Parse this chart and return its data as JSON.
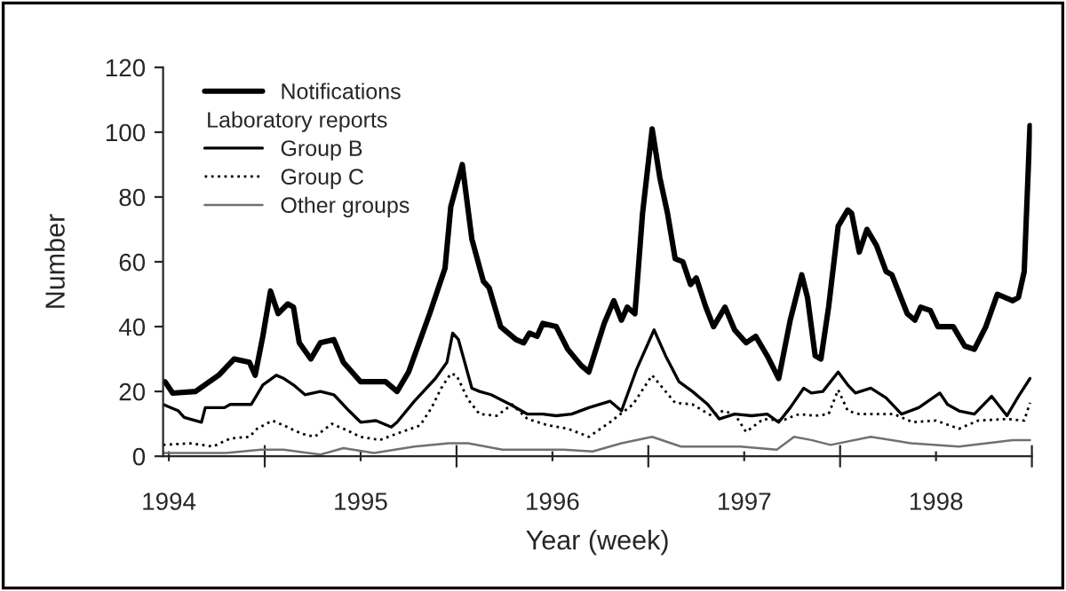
{
  "chart_data": {
    "type": "line",
    "xlabel": "Year (week)",
    "ylabel": "Number",
    "legend_title": "Laboratory reports",
    "legend": "top left",
    "grid": false,
    "xlim": [
      1994.47,
      1999.0
    ],
    "ylim": [
      0,
      120
    ],
    "yticks": [
      0,
      20,
      40,
      60,
      80,
      100,
      120
    ],
    "xticks": [
      {
        "value": 1995,
        "label": null
      },
      {
        "value": 1996,
        "label": null
      },
      {
        "value": 1997,
        "label": null
      },
      {
        "value": 1998,
        "label": null
      },
      {
        "value": 1999,
        "label": null
      },
      {
        "value": 1994.5,
        "label": "1994"
      },
      {
        "value": 1995.5,
        "label": "1995"
      },
      {
        "value": 1996.5,
        "label": "1996"
      },
      {
        "value": 1997.5,
        "label": "1997"
      },
      {
        "value": 1998.5,
        "label": "1998"
      }
    ],
    "series": [
      {
        "name": "Notifications",
        "color": "#000000",
        "line_style": "solid",
        "x": [
          1994.48,
          1994.52,
          1994.64,
          1994.76,
          1994.84,
          1994.92,
          1994.95,
          1994.99,
          1995.03,
          1995.07,
          1995.12,
          1995.15,
          1995.18,
          1995.24,
          1995.29,
          1995.36,
          1995.41,
          1995.5,
          1995.63,
          1995.69,
          1995.75,
          1995.86,
          1995.94,
          1995.97,
          1996.03,
          1996.08,
          1996.14,
          1996.17,
          1996.23,
          1996.31,
          1996.35,
          1996.38,
          1996.42,
          1996.45,
          1996.52,
          1996.58,
          1996.65,
          1996.69,
          1996.77,
          1996.82,
          1996.86,
          1996.89,
          1996.93,
          1996.97,
          1997.02,
          1997.06,
          1997.1,
          1997.14,
          1997.18,
          1997.22,
          1997.25,
          1997.3,
          1997.34,
          1997.4,
          1997.45,
          1997.51,
          1997.56,
          1997.62,
          1997.68,
          1997.74,
          1997.8,
          1997.83,
          1997.87,
          1997.9,
          1997.94,
          1997.99,
          1998.04,
          1998.06,
          1998.1,
          1998.14,
          1998.19,
          1998.24,
          1998.27,
          1998.35,
          1998.39,
          1998.42,
          1998.47,
          1998.51,
          1998.59,
          1998.65,
          1998.7,
          1998.76,
          1998.82,
          1998.86,
          1998.9,
          1998.93,
          1998.96,
          1998.99
        ],
        "values": [
          23,
          19.5,
          20,
          25,
          30,
          29,
          25,
          37,
          51,
          44,
          47,
          46,
          35,
          30,
          35,
          36,
          29,
          23,
          23,
          20,
          26,
          44,
          58,
          77,
          90,
          67,
          54,
          52,
          40,
          36,
          35,
          38,
          37,
          41,
          40,
          33,
          28,
          26,
          41,
          48,
          42,
          46,
          44,
          75,
          101,
          86,
          75,
          61,
          60,
          53,
          55,
          46,
          40,
          46,
          39,
          35,
          37,
          31,
          24,
          42,
          56,
          49,
          31,
          30,
          46,
          71,
          76,
          75,
          63,
          70,
          65,
          57,
          56,
          44,
          42,
          46,
          45,
          40,
          40,
          34,
          33,
          40,
          50,
          49,
          48,
          49,
          57,
          102
        ]
      },
      {
        "name": "Group B",
        "color": "#000000",
        "line_style": "solid",
        "x": [
          1994.47,
          1994.55,
          1994.58,
          1994.67,
          1994.69,
          1994.79,
          1994.82,
          1994.93,
          1994.99,
          1995.06,
          1995.1,
          1995.15,
          1995.21,
          1995.29,
          1995.36,
          1995.44,
          1995.5,
          1995.58,
          1995.66,
          1995.69,
          1995.78,
          1995.89,
          1995.95,
          1995.98,
          1996.01,
          1996.08,
          1996.12,
          1996.18,
          1996.28,
          1996.37,
          1996.45,
          1996.52,
          1996.6,
          1996.69,
          1996.8,
          1996.86,
          1996.94,
          1997.03,
          1997.09,
          1997.16,
          1997.23,
          1997.31,
          1997.37,
          1997.45,
          1997.54,
          1997.62,
          1997.68,
          1997.74,
          1997.81,
          1997.85,
          1997.91,
          1997.99,
          1998.04,
          1998.08,
          1998.16,
          1998.24,
          1998.32,
          1998.41,
          1998.52,
          1998.56,
          1998.62,
          1998.7,
          1998.79,
          1998.87,
          1998.93,
          1998.99
        ],
        "values": [
          16,
          14,
          12,
          10.5,
          15,
          15,
          16,
          16,
          22,
          25,
          24,
          22,
          19,
          20,
          19,
          14,
          10.5,
          11,
          9,
          10.5,
          17,
          24,
          29,
          38,
          36,
          21,
          20,
          19,
          16,
          13,
          13,
          12.5,
          13,
          15,
          17,
          14,
          27,
          39,
          31,
          23,
          20,
          16,
          11.5,
          13,
          12.5,
          13,
          10.5,
          15,
          21,
          19.5,
          20,
          26,
          22,
          19.5,
          21,
          18,
          13,
          15,
          19.5,
          16,
          14,
          13,
          18.5,
          12.5,
          18.5,
          24
        ]
      },
      {
        "name": "Group C",
        "color": "#000000",
        "line_style": "dotted",
        "x": [
          1994.47,
          1994.61,
          1994.73,
          1994.82,
          1994.92,
          1994.96,
          1995.04,
          1995.1,
          1995.19,
          1995.26,
          1995.35,
          1995.41,
          1995.5,
          1995.6,
          1995.69,
          1995.81,
          1995.87,
          1995.92,
          1995.97,
          1996.0,
          1996.06,
          1996.12,
          1996.21,
          1996.29,
          1996.37,
          1996.48,
          1996.58,
          1996.69,
          1996.8,
          1996.92,
          1997.02,
          1997.09,
          1997.14,
          1997.23,
          1997.33,
          1997.39,
          1997.45,
          1997.51,
          1997.6,
          1997.7,
          1997.76,
          1997.79,
          1997.87,
          1997.94,
          1997.99,
          1998.04,
          1998.1,
          1998.18,
          1998.28,
          1998.38,
          1998.5,
          1998.62,
          1998.72,
          1998.87,
          1998.96,
          1998.99
        ],
        "values": [
          3.5,
          4,
          3,
          5.5,
          6,
          8.5,
          11,
          9.5,
          7,
          6,
          10,
          8.5,
          6,
          5,
          7,
          9.5,
          15,
          21,
          25.5,
          25,
          17.5,
          13,
          12.5,
          16,
          11.5,
          9.5,
          8.5,
          6,
          10.5,
          16,
          25,
          20,
          16.5,
          16,
          12.5,
          14,
          13,
          7.5,
          11.5,
          11,
          12.5,
          13,
          12.5,
          13,
          20.5,
          14,
          13,
          13,
          13,
          10.5,
          11,
          8.5,
          11,
          11.5,
          11,
          16.5
        ]
      },
      {
        "name": "Other groups",
        "color": "#707070",
        "line_style": "solid",
        "x": [
          1994.47,
          1994.79,
          1994.98,
          1995.1,
          1995.29,
          1995.41,
          1995.57,
          1995.78,
          1995.96,
          1996.06,
          1996.24,
          1996.56,
          1996.71,
          1996.86,
          1997.02,
          1997.17,
          1997.48,
          1997.67,
          1997.76,
          1997.85,
          1997.95,
          1998.16,
          1998.37,
          1998.62,
          1998.9,
          1998.99
        ],
        "values": [
          1,
          1,
          2,
          2,
          0.5,
          2.5,
          1,
          3,
          4,
          4,
          2,
          2,
          1.5,
          4,
          6,
          3,
          3,
          2,
          6,
          5,
          3.5,
          6,
          4,
          3,
          5,
          5
        ]
      }
    ]
  }
}
